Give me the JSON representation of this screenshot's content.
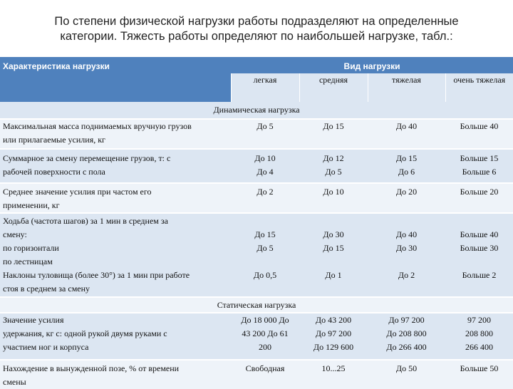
{
  "intro": {
    "line1": "По степени физической нагрузки работы подразделяют на определенные",
    "line2": "категории. Тяжесть работы определяют по наибольшей нагрузке, табл.:"
  },
  "header": {
    "characteristic": "Характеристика нагрузки",
    "load_type": "Вид нагрузки",
    "sub": [
      "легкая",
      "средняя",
      "тяжелая",
      "очень тяжелая"
    ]
  },
  "sections": {
    "dynamic": "Динамическая нагрузка",
    "static": "Статическая нагрузка"
  },
  "rows": [
    {
      "label": [
        "Максимальная масса поднимаемых вручную грузов",
        "или прилагаемые усилия, кг"
      ],
      "values": [
        [
          "До 5"
        ],
        [
          "До 15"
        ],
        [
          "До 40"
        ],
        [
          "Больше 40"
        ]
      ]
    },
    {
      "label": [
        "Суммарное за смену перемещение грузов, т: с",
        "рабочей поверхности с пола"
      ],
      "values": [
        [
          "До 10",
          "До 4"
        ],
        [
          "До 12",
          "До 5"
        ],
        [
          "До 15",
          "До 6"
        ],
        [
          "Больше 15",
          "Больше 6"
        ]
      ]
    },
    {
      "label": [
        "Среднее значение усилия при частом его",
        "применении, кг"
      ],
      "values": [
        [
          "До 2"
        ],
        [
          "До 10"
        ],
        [
          "До 20"
        ],
        [
          "Больше 20"
        ]
      ]
    },
    {
      "label": [
        "Ходьба (частота шагов) за 1 мин в среднем за",
        "смену:",
        "по горизонтали",
        "по лестницам"
      ],
      "values": [
        [
          "До 15",
          "До 5"
        ],
        [
          "До 30",
          "До 15"
        ],
        [
          "До 40",
          "До 30"
        ],
        [
          "Больше 40",
          "Больше 30"
        ]
      ]
    },
    {
      "label": [
        "Наклоны туловища (более 30°) за 1 мин при работе",
        "стоя в среднем за смену"
      ],
      "values": [
        [
          "До 0,5"
        ],
        [
          "До 1"
        ],
        [
          "До 2"
        ],
        [
          "Больше 2"
        ]
      ]
    },
    {
      "label": [
        "Значение усилия",
        "удержания, кг с: одной рукой двумя руками с",
        "участием ног и корпуса"
      ],
      "values": [
        [
          "До 18 000 До",
          "43 200 До 61",
          "200"
        ],
        [
          "До 43 200",
          "До 97 200",
          "До 129 600"
        ],
        [
          "До 97 200",
          "До 208 800",
          "До 266 400"
        ],
        [
          "97 200",
          "208 800",
          "266 400"
        ]
      ]
    },
    {
      "label": [
        "Нахождение в вынужденной позе, % от времени",
        "смены"
      ],
      "values": [
        [
          "Свободная"
        ],
        [
          "10...25"
        ],
        [
          "До 50"
        ],
        [
          "Больше 50"
        ]
      ]
    }
  ]
}
